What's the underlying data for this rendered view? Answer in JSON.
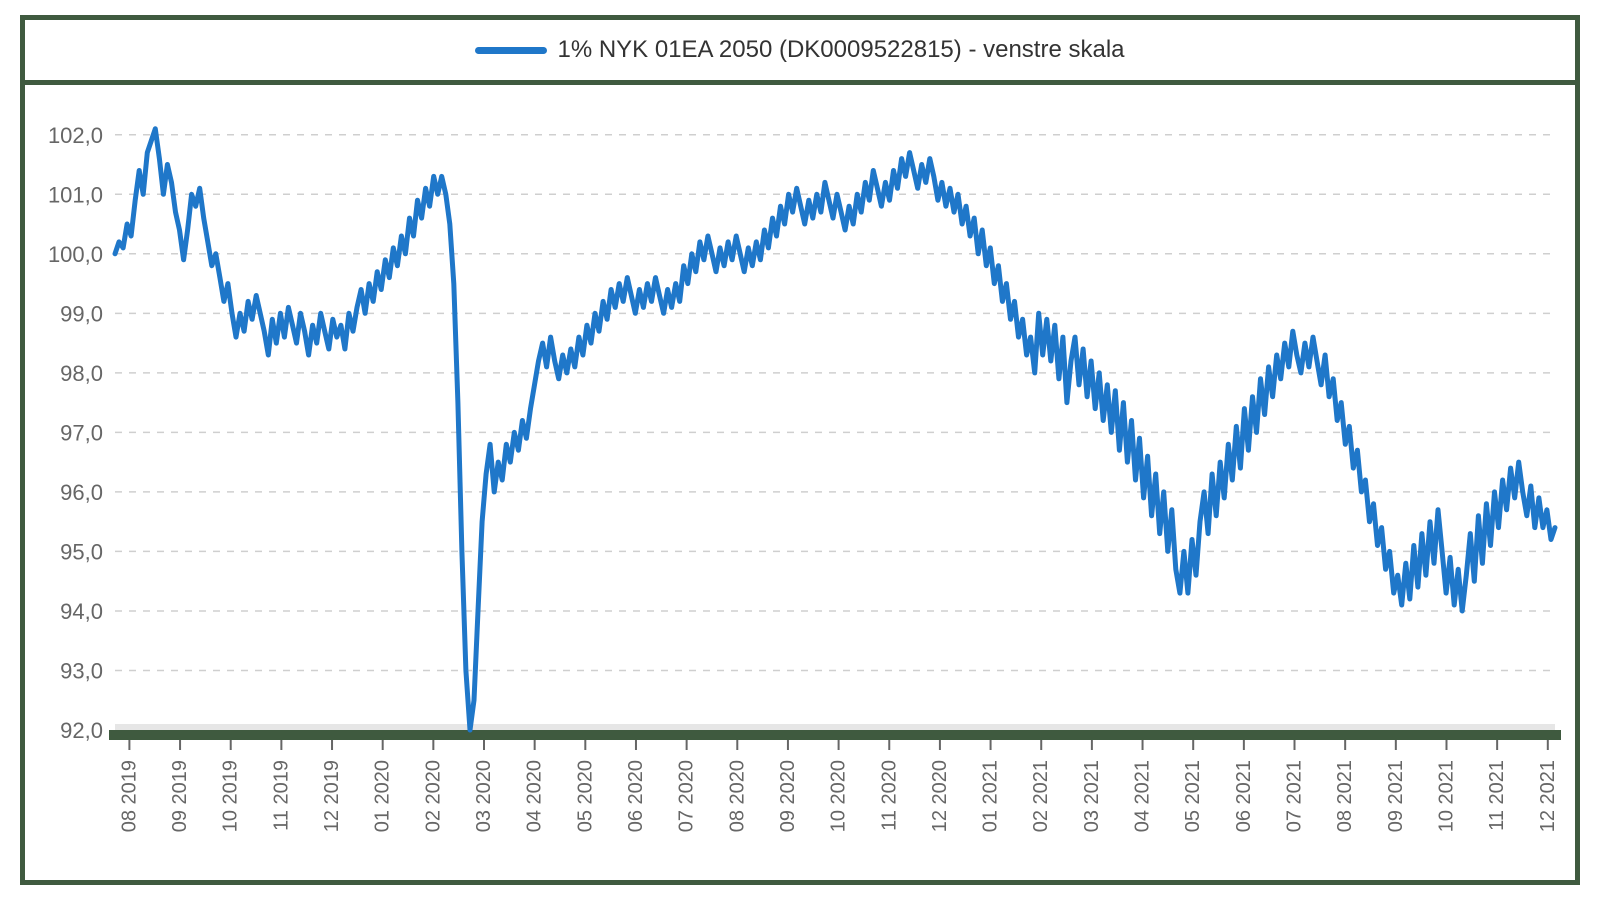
{
  "chart": {
    "type": "line",
    "legend_label": "1% NYK 01EA 2050 (DK0009522815) - venstre skala",
    "frame_border_color": "#3f5a3f",
    "legend_swatch_color": "#1f77c9",
    "line_color": "#1f77c9",
    "line_width": 5,
    "grid_color": "#cfcfcf",
    "axis_text_color": "#666666",
    "plot_bg": "#ffffff",
    "ylim": [
      92.0,
      102.5
    ],
    "y_ticks": [
      92.0,
      93.0,
      94.0,
      95.0,
      96.0,
      97.0,
      98.0,
      99.0,
      100.0,
      101.0,
      102.0
    ],
    "y_tick_labels": [
      "92,0",
      "93,0",
      "94,0",
      "95,0",
      "96,0",
      "97,0",
      "98,0",
      "99,0",
      "100,0",
      "101,0",
      "102,0"
    ],
    "x_tick_labels": [
      "08 2019",
      "09 2019",
      "10 2019",
      "11 2019",
      "12 2019",
      "01 2020",
      "02 2020",
      "03 2020",
      "04 2020",
      "05 2020",
      "06 2020",
      "07 2020",
      "08 2020",
      "09 2020",
      "10 2020",
      "11 2020",
      "12 2020",
      "01 2021",
      "02 2021",
      "03 2021",
      "04 2021",
      "05 2021",
      "06 2021",
      "07 2021",
      "08 2021",
      "09 2021",
      "10 2021",
      "11 2021",
      "12 2021"
    ],
    "series": [
      100.0,
      100.2,
      100.1,
      100.5,
      100.3,
      100.9,
      101.4,
      101.0,
      101.7,
      101.9,
      102.1,
      101.6,
      101.0,
      101.5,
      101.2,
      100.7,
      100.4,
      99.9,
      100.4,
      101.0,
      100.8,
      101.1,
      100.6,
      100.2,
      99.8,
      100.0,
      99.6,
      99.2,
      99.5,
      99.0,
      98.6,
      99.0,
      98.7,
      99.2,
      98.9,
      99.3,
      99.0,
      98.7,
      98.3,
      98.9,
      98.5,
      99.0,
      98.6,
      99.1,
      98.8,
      98.5,
      99.0,
      98.7,
      98.3,
      98.8,
      98.5,
      99.0,
      98.7,
      98.4,
      98.9,
      98.6,
      98.8,
      98.4,
      99.0,
      98.7,
      99.1,
      99.4,
      99.0,
      99.5,
      99.2,
      99.7,
      99.4,
      99.9,
      99.6,
      100.1,
      99.8,
      100.3,
      100.0,
      100.6,
      100.3,
      100.9,
      100.6,
      101.1,
      100.8,
      101.3,
      101.0,
      101.3,
      101.0,
      100.5,
      99.5,
      97.5,
      95.0,
      93.0,
      92.0,
      92.5,
      94.0,
      95.5,
      96.3,
      96.8,
      96.0,
      96.5,
      96.2,
      96.8,
      96.5,
      97.0,
      96.7,
      97.2,
      96.9,
      97.4,
      97.8,
      98.2,
      98.5,
      98.1,
      98.6,
      98.2,
      97.9,
      98.3,
      98.0,
      98.4,
      98.1,
      98.6,
      98.3,
      98.8,
      98.5,
      99.0,
      98.7,
      99.2,
      98.9,
      99.4,
      99.1,
      99.5,
      99.2,
      99.6,
      99.3,
      99.0,
      99.4,
      99.1,
      99.5,
      99.2,
      99.6,
      99.3,
      99.0,
      99.4,
      99.1,
      99.5,
      99.2,
      99.8,
      99.5,
      100.0,
      99.7,
      100.2,
      99.9,
      100.3,
      100.0,
      99.7,
      100.1,
      99.8,
      100.2,
      99.9,
      100.3,
      100.0,
      99.7,
      100.1,
      99.8,
      100.2,
      99.9,
      100.4,
      100.1,
      100.6,
      100.3,
      100.8,
      100.5,
      101.0,
      100.7,
      101.1,
      100.8,
      100.5,
      100.9,
      100.6,
      101.0,
      100.7,
      101.2,
      100.9,
      100.6,
      101.0,
      100.7,
      100.4,
      100.8,
      100.5,
      101.0,
      100.7,
      101.2,
      100.9,
      101.4,
      101.1,
      100.8,
      101.2,
      100.9,
      101.4,
      101.1,
      101.6,
      101.3,
      101.7,
      101.4,
      101.1,
      101.5,
      101.2,
      101.6,
      101.3,
      100.9,
      101.2,
      100.8,
      101.1,
      100.7,
      101.0,
      100.5,
      100.8,
      100.3,
      100.6,
      100.0,
      100.4,
      99.8,
      100.1,
      99.5,
      99.8,
      99.2,
      99.5,
      98.9,
      99.2,
      98.6,
      98.9,
      98.3,
      98.6,
      98.0,
      99.0,
      98.3,
      98.9,
      98.2,
      98.8,
      97.9,
      98.6,
      97.5,
      98.2,
      98.6,
      97.8,
      98.4,
      97.6,
      98.2,
      97.4,
      98.0,
      97.2,
      97.8,
      97.0,
      97.7,
      96.7,
      97.5,
      96.5,
      97.2,
      96.2,
      96.9,
      95.9,
      96.6,
      95.6,
      96.3,
      95.3,
      96.0,
      95.0,
      95.7,
      94.7,
      94.3,
      95.0,
      94.3,
      95.2,
      94.6,
      95.5,
      96.0,
      95.3,
      96.3,
      95.6,
      96.5,
      95.9,
      96.8,
      96.2,
      97.1,
      96.4,
      97.4,
      96.7,
      97.6,
      97.0,
      97.9,
      97.3,
      98.1,
      97.6,
      98.3,
      97.9,
      98.5,
      98.1,
      98.7,
      98.3,
      98.0,
      98.5,
      98.1,
      98.6,
      98.2,
      97.8,
      98.3,
      97.6,
      97.9,
      97.2,
      97.5,
      96.8,
      97.1,
      96.4,
      96.7,
      96.0,
      96.2,
      95.5,
      95.8,
      95.1,
      95.4,
      94.7,
      95.0,
      94.3,
      94.6,
      94.1,
      94.8,
      94.2,
      95.1,
      94.4,
      95.3,
      94.6,
      95.5,
      94.8,
      95.7,
      95.0,
      94.3,
      94.9,
      94.1,
      94.7,
      94.0,
      94.6,
      95.3,
      94.5,
      95.6,
      94.8,
      95.8,
      95.1,
      96.0,
      95.4,
      96.2,
      95.7,
      96.4,
      95.9,
      96.5,
      96.0,
      95.6,
      96.1,
      95.4,
      95.9,
      95.4,
      95.7,
      95.2,
      95.4
    ]
  }
}
